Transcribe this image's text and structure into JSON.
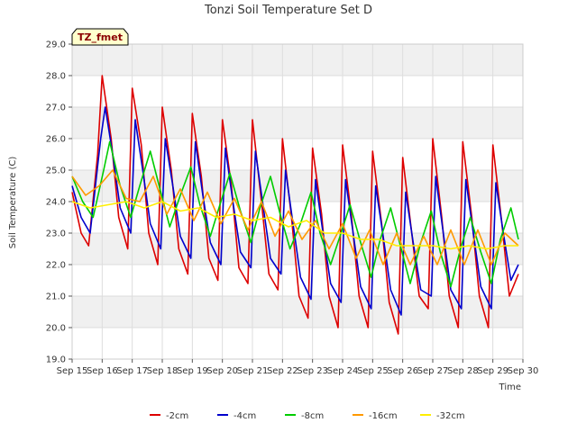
{
  "chart_data": {
    "type": "line",
    "title": "Tonzi Soil Temperature Set D",
    "xlabel": "Time",
    "ylabel": "Soil Temperature (C)",
    "ylim": [
      19.0,
      29.0
    ],
    "xlim": [
      0,
      15
    ],
    "x_ticks": [
      "Sep 15",
      "Sep 16",
      "Sep 17",
      "Sep 18",
      "Sep 19",
      "Sep 20",
      "Sep 21",
      "Sep 22",
      "Sep 23",
      "Sep 24",
      "Sep 25",
      "Sep 26",
      "Sep 27",
      "Sep 28",
      "Sep 29",
      "Sep 30"
    ],
    "y_ticks": [
      "19.0",
      "20.0",
      "21.0",
      "22.0",
      "23.0",
      "24.0",
      "25.0",
      "26.0",
      "27.0",
      "28.0",
      "29.0"
    ],
    "grid": "horizontal bands",
    "legend_placement": "bottom-center",
    "annotation": "TZ_fmet",
    "series": [
      {
        "name": "-2cm",
        "color": "#dd0000",
        "x": [
          0.0,
          0.3,
          0.55,
          0.85,
          1.0,
          1.3,
          1.55,
          1.85,
          2.0,
          2.3,
          2.55,
          2.85,
          3.0,
          3.3,
          3.55,
          3.85,
          4.0,
          4.3,
          4.55,
          4.85,
          5.0,
          5.3,
          5.55,
          5.85,
          6.0,
          6.3,
          6.55,
          6.85,
          7.0,
          7.3,
          7.55,
          7.85,
          8.0,
          8.3,
          8.55,
          8.85,
          9.0,
          9.3,
          9.55,
          9.85,
          10.0,
          10.3,
          10.55,
          10.85,
          11.0,
          11.3,
          11.55,
          11.85,
          12.0,
          12.3,
          12.55,
          12.85,
          13.0,
          13.3,
          13.55,
          13.85,
          14.0,
          14.3,
          14.55,
          14.85
        ],
        "y": [
          24.3,
          23.0,
          22.6,
          25.5,
          28.0,
          26.0,
          23.5,
          22.5,
          27.6,
          25.8,
          23.0,
          22.0,
          27.0,
          25.0,
          22.5,
          21.7,
          26.8,
          24.8,
          22.2,
          21.5,
          26.6,
          24.5,
          21.9,
          21.4,
          26.6,
          24.0,
          21.7,
          21.2,
          26.0,
          23.5,
          21.0,
          20.3,
          25.7,
          23.6,
          21.0,
          20.0,
          25.8,
          23.5,
          21.0,
          20.0,
          25.6,
          23.3,
          20.8,
          19.8,
          25.4,
          23.0,
          21.0,
          20.6,
          26.0,
          23.5,
          21.0,
          20.0,
          25.9,
          23.5,
          21.0,
          20.0,
          25.8,
          23.3,
          21.0,
          21.7
        ]
      },
      {
        "name": "-4cm",
        "color": "#0000cc",
        "x": [
          0.0,
          0.3,
          0.6,
          0.95,
          1.1,
          1.35,
          1.6,
          1.95,
          2.1,
          2.35,
          2.6,
          2.95,
          3.1,
          3.35,
          3.6,
          3.95,
          4.1,
          4.35,
          4.6,
          4.95,
          5.1,
          5.35,
          5.6,
          5.95,
          6.1,
          6.35,
          6.6,
          6.95,
          7.1,
          7.35,
          7.6,
          7.95,
          8.1,
          8.35,
          8.6,
          8.95,
          9.1,
          9.35,
          9.6,
          9.95,
          10.1,
          10.35,
          10.6,
          10.95,
          11.1,
          11.35,
          11.6,
          11.95,
          12.1,
          12.35,
          12.6,
          12.95,
          13.1,
          13.35,
          13.6,
          13.95,
          14.1,
          14.35,
          14.6,
          14.85
        ],
        "y": [
          24.5,
          23.5,
          23.0,
          26.0,
          27.0,
          25.5,
          23.8,
          23.0,
          26.6,
          25.0,
          23.3,
          22.5,
          26.0,
          24.5,
          22.9,
          22.2,
          25.9,
          24.2,
          22.7,
          22.0,
          25.7,
          24.0,
          22.4,
          21.9,
          25.6,
          23.9,
          22.2,
          21.7,
          25.0,
          23.3,
          21.6,
          20.9,
          24.7,
          23.0,
          21.4,
          20.8,
          24.7,
          23.0,
          21.3,
          20.6,
          24.5,
          22.9,
          21.2,
          20.4,
          24.3,
          22.7,
          21.2,
          21.0,
          24.8,
          23.0,
          21.2,
          20.6,
          24.7,
          23.0,
          21.3,
          20.6,
          24.6,
          23.0,
          21.5,
          22.0
        ]
      },
      {
        "name": "-8cm",
        "color": "#00cc00",
        "x": [
          0.0,
          0.35,
          0.7,
          1.05,
          1.25,
          1.6,
          1.95,
          2.25,
          2.6,
          2.95,
          3.25,
          3.6,
          3.95,
          4.25,
          4.6,
          4.95,
          5.25,
          5.6,
          5.95,
          6.25,
          6.6,
          6.95,
          7.25,
          7.6,
          7.95,
          8.25,
          8.6,
          8.95,
          9.25,
          9.6,
          9.95,
          10.25,
          10.6,
          10.95,
          11.25,
          11.6,
          11.95,
          12.25,
          12.6,
          12.95,
          13.25,
          13.6,
          13.95,
          14.25,
          14.6,
          14.85
        ],
        "y": [
          24.8,
          24.0,
          23.5,
          25.0,
          25.9,
          24.5,
          23.5,
          24.5,
          25.6,
          24.3,
          23.2,
          24.2,
          25.1,
          23.9,
          22.9,
          24.0,
          24.9,
          23.7,
          22.7,
          23.8,
          24.8,
          23.5,
          22.5,
          23.3,
          24.3,
          23.0,
          22.0,
          23.0,
          23.9,
          22.7,
          21.6,
          22.8,
          23.8,
          22.5,
          21.4,
          22.7,
          23.7,
          22.4,
          21.3,
          22.6,
          23.5,
          22.4,
          21.4,
          22.8,
          23.8,
          22.8
        ]
      },
      {
        "name": "-16cm",
        "color": "#ff9900",
        "x": [
          0.0,
          0.45,
          0.9,
          1.35,
          1.8,
          2.25,
          2.7,
          3.15,
          3.6,
          4.05,
          4.5,
          4.95,
          5.4,
          5.85,
          6.3,
          6.75,
          7.2,
          7.65,
          8.1,
          8.55,
          9.0,
          9.45,
          9.9,
          10.35,
          10.8,
          11.25,
          11.7,
          12.15,
          12.6,
          13.05,
          13.5,
          13.95,
          14.4,
          14.85
        ],
        "y": [
          24.8,
          24.2,
          24.5,
          25.0,
          24.1,
          24.0,
          24.8,
          23.6,
          24.4,
          23.4,
          24.3,
          23.3,
          24.1,
          23.1,
          24.0,
          22.9,
          23.7,
          22.8,
          23.4,
          22.5,
          23.3,
          22.2,
          23.1,
          22.0,
          23.0,
          22.0,
          22.9,
          22.0,
          23.1,
          22.0,
          23.1,
          22.0,
          23.0,
          22.6
        ]
      },
      {
        "name": "-32cm",
        "color": "#ffee00",
        "x": [
          0.0,
          0.6,
          1.2,
          1.8,
          2.4,
          3.0,
          3.6,
          4.2,
          4.8,
          5.4,
          6.0,
          6.6,
          7.2,
          7.8,
          8.4,
          9.0,
          9.6,
          10.2,
          10.8,
          11.4,
          12.0,
          12.6,
          13.2,
          13.8,
          14.4,
          14.85
        ],
        "y": [
          24.0,
          23.8,
          23.9,
          24.0,
          23.8,
          24.0,
          23.7,
          23.8,
          23.5,
          23.6,
          23.4,
          23.5,
          23.2,
          23.4,
          23.0,
          23.0,
          22.8,
          22.8,
          22.6,
          22.6,
          22.6,
          22.5,
          22.6,
          22.5,
          22.6,
          22.6
        ]
      }
    ]
  }
}
